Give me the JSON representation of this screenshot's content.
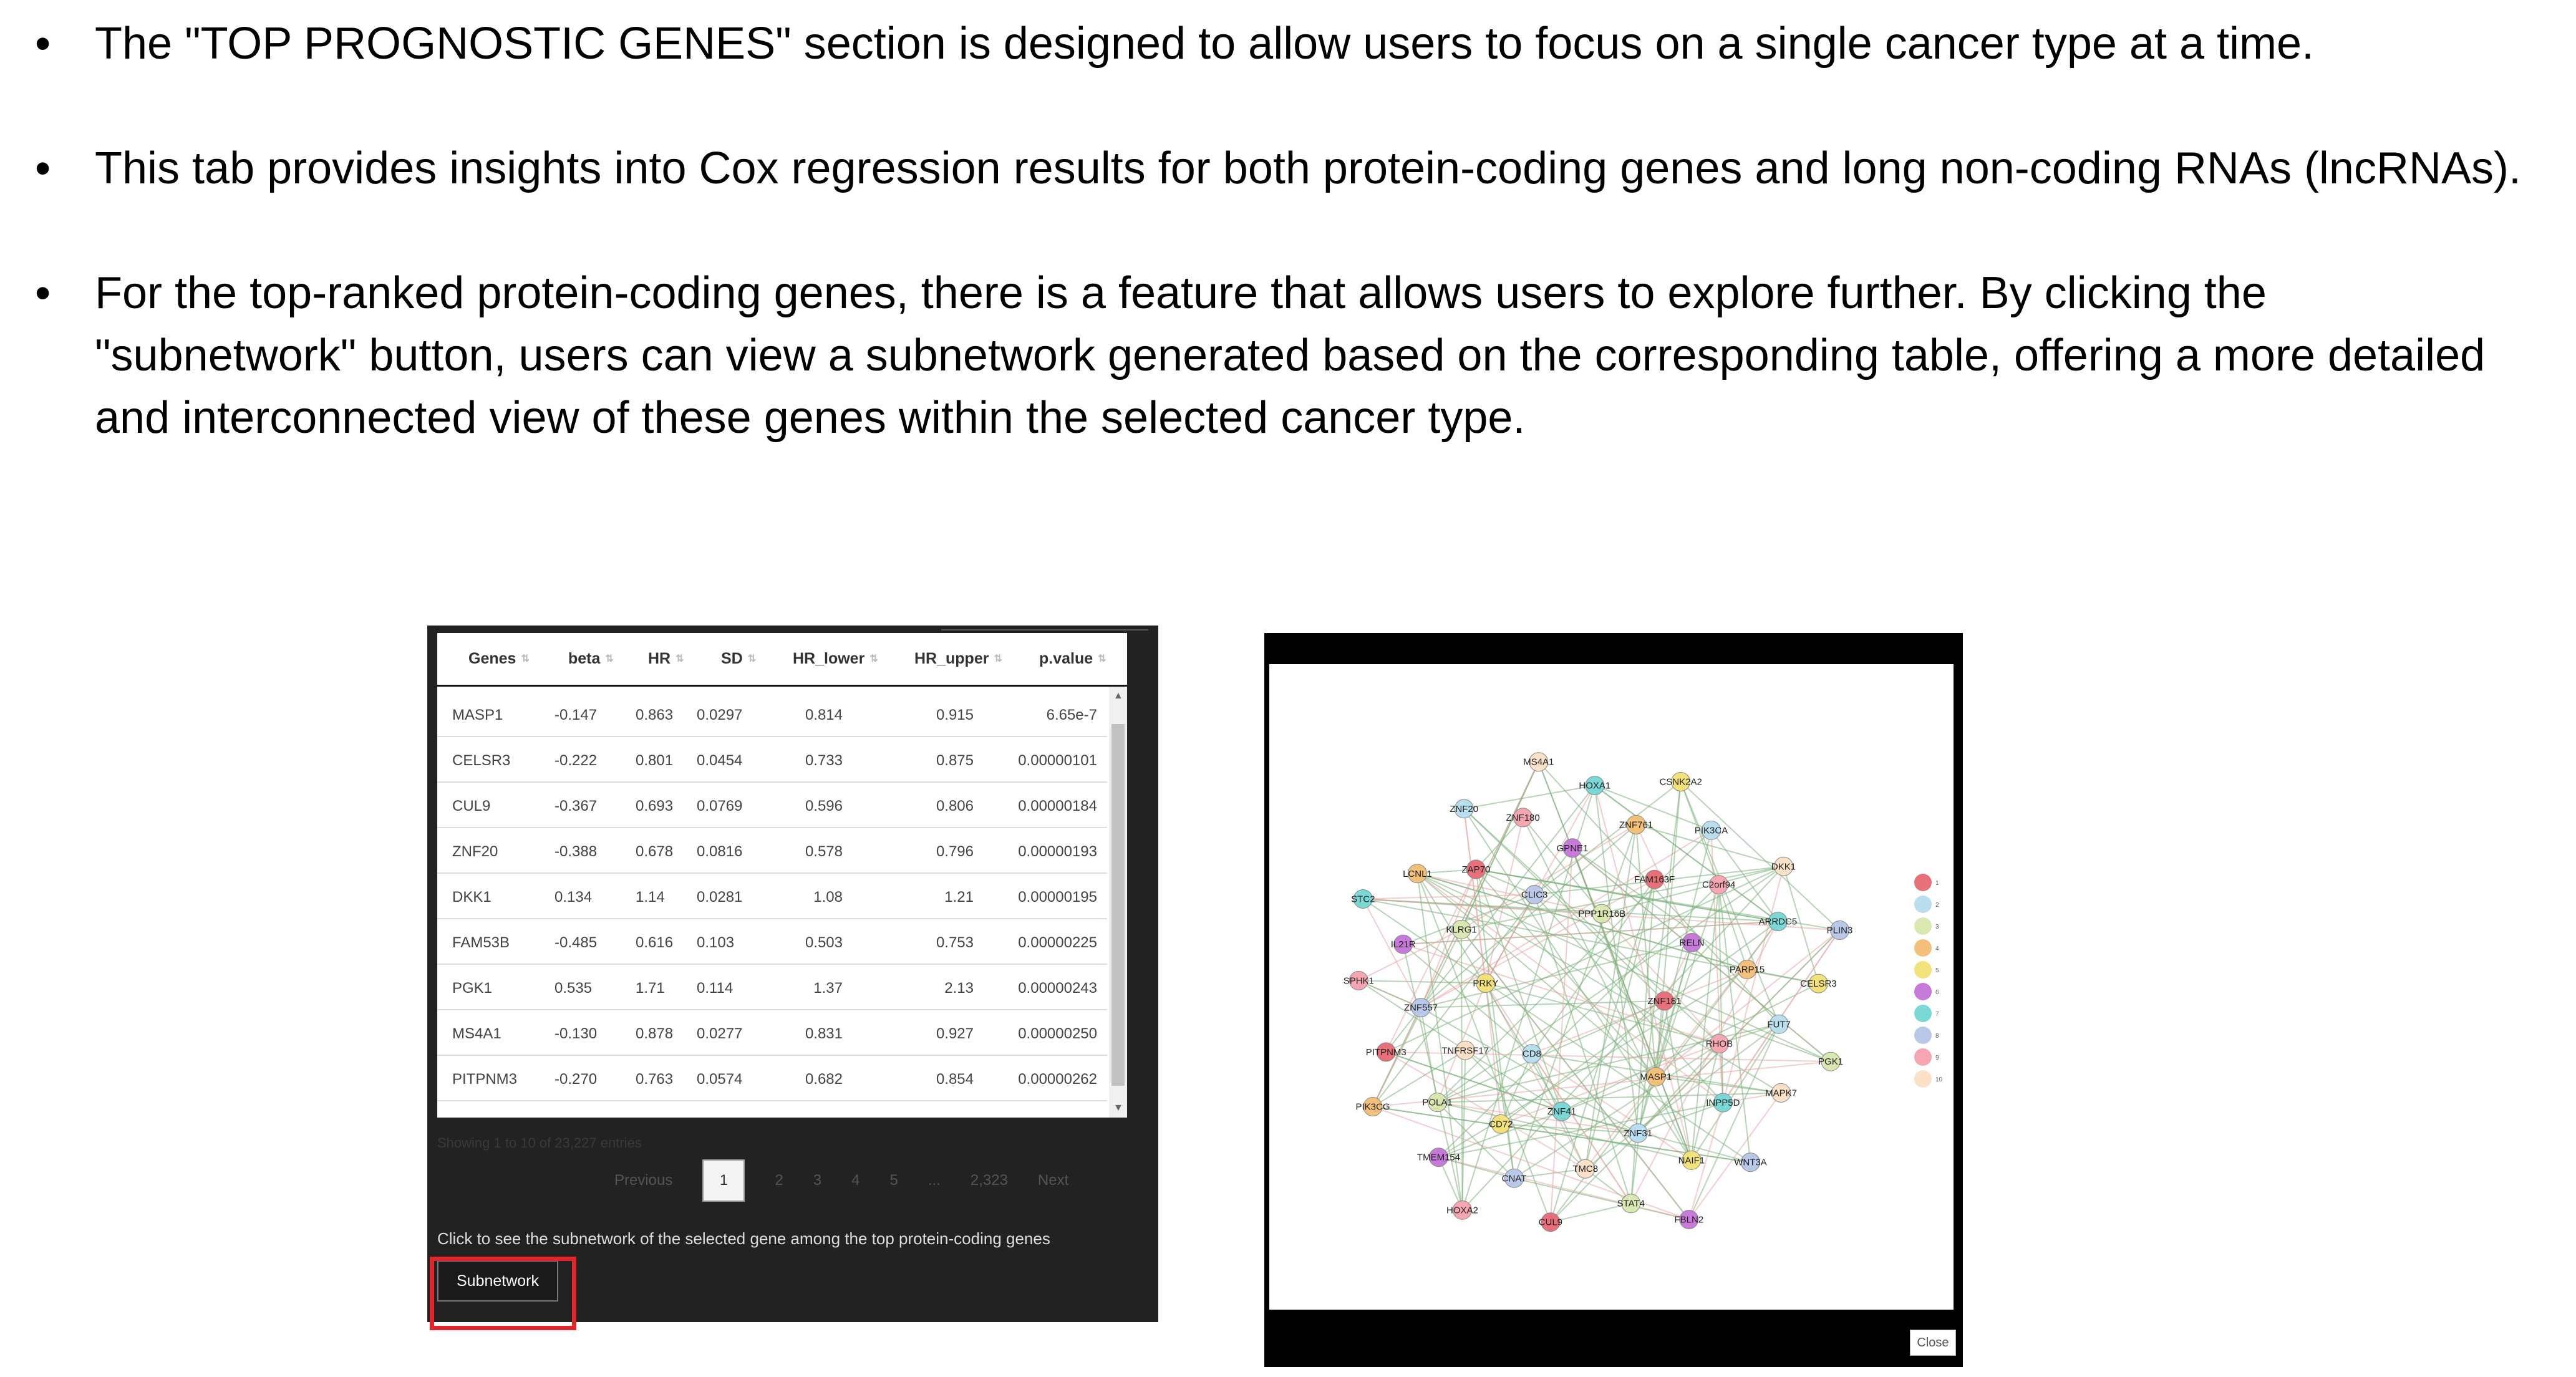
{
  "bullets": [
    "The \"TOP PROGNOSTIC GENES\" section is designed to allow users to focus on a single cancer type at a time.",
    "This tab provides insights into Cox regression results for both protein-coding genes and long non-coding RNAs (lncRNAs).",
    "For the top-ranked protein-coding genes, there is a feature that allows users to explore further. By clicking the \"subnetwork\" button, users can view a subnetwork generated based on the corresponding table, offering a more detailed and interconnected view of these genes within the selected cancer type."
  ],
  "bullet_glyph": "•",
  "table": {
    "columns": [
      "Genes",
      "beta",
      "HR",
      "SD",
      "HR_lower",
      "HR_upper",
      "p.value"
    ],
    "rows": [
      [
        "MASP1",
        "-0.147",
        "0.863",
        "0.0297",
        "0.814",
        "0.915",
        "6.65e-7"
      ],
      [
        "CELSR3",
        "-0.222",
        "0.801",
        "0.0454",
        "0.733",
        "0.875",
        "0.00000101"
      ],
      [
        "CUL9",
        "-0.367",
        "0.693",
        "0.0769",
        "0.596",
        "0.806",
        "0.00000184"
      ],
      [
        "ZNF20",
        "-0.388",
        "0.678",
        "0.0816",
        "0.578",
        "0.796",
        "0.00000193"
      ],
      [
        "DKK1",
        "0.134",
        "1.14",
        "0.0281",
        "1.08",
        "1.21",
        "0.00000195"
      ],
      [
        "FAM53B",
        "-0.485",
        "0.616",
        "0.103",
        "0.503",
        "0.753",
        "0.00000225"
      ],
      [
        "PGK1",
        "0.535",
        "1.71",
        "0.114",
        "1.37",
        "2.13",
        "0.00000243"
      ],
      [
        "MS4A1",
        "-0.130",
        "0.878",
        "0.0277",
        "0.831",
        "0.927",
        "0.00000250"
      ],
      [
        "PITPNM3",
        "-0.270",
        "0.763",
        "0.0574",
        "0.682",
        "0.854",
        "0.00000262"
      ]
    ]
  },
  "pagination": {
    "info": "Showing 1 to 10 of 23,227 entries",
    "previous": "Previous",
    "pages": [
      "1",
      "2",
      "3",
      "4",
      "5",
      "...",
      "2,323"
    ],
    "current": "1",
    "next": "Next"
  },
  "hint": "Click to see the subnetwork of the selected gene among the top protein-coding genes",
  "subnetwork_button": "Subnetwork",
  "network": {
    "close_button": "Close",
    "node_labels": [
      "ZNF181",
      "CD8",
      "PPP1R16B",
      "MASP1",
      "PRKY",
      "RELN",
      "ZNF41",
      "CLIC3",
      "RHOB",
      "TNFRSF17",
      "FAM163F",
      "ZNF31",
      "KLRG1",
      "PARP15",
      "CD72",
      "GPNE1",
      "INPP5D",
      "ZNF557",
      "C2orf94",
      "TMC8",
      "ZAP70",
      "FUT7",
      "POLA1",
      "ZNF761",
      "NAIF1",
      "IL21R",
      "ARRDC5",
      "CNAT",
      "ZNF180",
      "MAPK7",
      "PITPNM3",
      "PIK3CA",
      "STAT4",
      "LCNL1",
      "CELSR3",
      "TMEM154",
      "HOXA1",
      "WNT3A",
      "SPHK1",
      "DKK1",
      "CUL9",
      "ZNF20",
      "PGK1",
      "PIK3CG",
      "CSNK2A2",
      "FBLN2",
      "STC2",
      "PLIN3",
      "HOXA2",
      "MS4A1"
    ],
    "legend": [
      "1",
      "2",
      "3",
      "4",
      "5",
      "6",
      "7",
      "8",
      "9",
      "10"
    ],
    "legend_colors": [
      "#e8707a",
      "#b9def0",
      "#d9e8b0",
      "#f3c07a",
      "#f3e27a",
      "#c77ad9",
      "#7ad9d6",
      "#b9c7e8",
      "#f5a6b0",
      "#fbe1c8"
    ]
  }
}
